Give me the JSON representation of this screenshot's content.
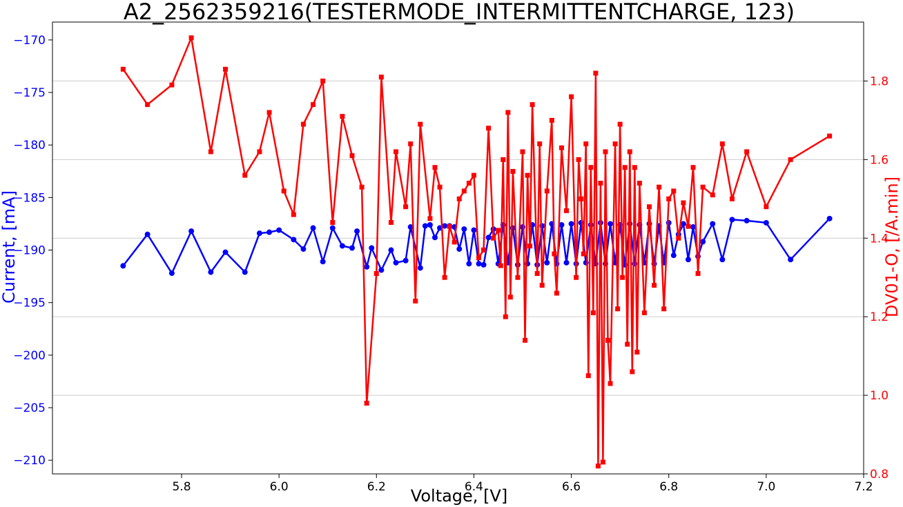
{
  "chart_data": {
    "type": "line",
    "title": "A2_2562359216(TESTERMODE_INTERMITTENTCHARGE, 123)",
    "xlabel": "Voltage, [V]",
    "ylabel_left": "Current, [mA]",
    "ylabel_right": "DV01-O, [/A.min]",
    "xlim": [
      5.535,
      7.2
    ],
    "ylim_left": [
      -211.3,
      -168.3
    ],
    "ylim_right": [
      0.8,
      1.95
    ],
    "xticks": [
      "5.8",
      "6.0",
      "6.2",
      "6.4",
      "6.6",
      "6.8",
      "7.0",
      "7.2"
    ],
    "yticks_left": [
      "−170",
      "−175",
      "−180",
      "−185",
      "−190",
      "−195",
      "−200",
      "−205",
      "−210"
    ],
    "yticks_right": [
      "1.8",
      "1.6",
      "1.4",
      "1.2",
      "1.0",
      "0.8"
    ],
    "grid": "horizontal, right axis",
    "colors": {
      "current": "#0000ff",
      "dv": "#ff0000",
      "grid": "#cccccc"
    },
    "series": [
      {
        "axis": "left",
        "marker": "circle",
        "x": [
          5.68,
          5.73,
          5.78,
          5.82,
          5.86,
          5.89,
          5.93,
          5.96,
          5.98,
          6.0,
          6.03,
          6.05,
          6.07,
          6.09,
          6.11,
          6.13,
          6.15,
          6.16,
          6.18,
          6.19,
          6.21,
          6.23,
          6.24,
          6.26,
          6.27,
          6.29,
          6.3,
          6.31,
          6.32,
          6.33,
          6.34,
          6.35,
          6.36,
          6.37,
          6.38,
          6.39,
          6.4,
          6.41,
          6.42,
          6.43,
          6.44,
          6.45,
          6.46,
          6.47,
          6.48,
          6.49,
          6.5,
          6.51,
          6.52,
          6.53,
          6.54,
          6.55,
          6.56,
          6.57,
          6.58,
          6.59,
          6.6,
          6.61,
          6.62,
          6.63,
          6.64,
          6.65,
          6.66,
          6.67,
          6.68,
          6.69,
          6.7,
          6.71,
          6.72,
          6.73,
          6.74,
          6.75,
          6.76,
          6.77,
          6.78,
          6.79,
          6.8,
          6.81,
          6.82,
          6.83,
          6.84,
          6.85,
          6.86,
          6.87,
          6.89,
          6.91,
          6.93,
          6.96,
          7.0,
          7.05,
          7.13
        ],
        "y": [
          -191.5,
          -188.5,
          -192.2,
          -188.2,
          -192.1,
          -190.2,
          -192.1,
          -188.4,
          -188.3,
          -188.1,
          -189.0,
          -189.9,
          -187.9,
          -191.1,
          -187.9,
          -189.6,
          -189.8,
          -188.2,
          -191.6,
          -189.8,
          -191.9,
          -190.0,
          -191.2,
          -191.0,
          -187.8,
          -191.7,
          -187.7,
          -187.6,
          -188.8,
          -187.9,
          -187.7,
          -187.7,
          -187.8,
          -189.9,
          -188.0,
          -191.3,
          -188.1,
          -191.3,
          -191.4,
          -188.8,
          -188.0,
          -191.3,
          -187.6,
          -191.2,
          -187.9,
          -191.4,
          -187.8,
          -191.3,
          -187.6,
          -191.4,
          -187.7,
          -191.2,
          -187.5,
          -191.3,
          -187.6,
          -191.2,
          -187.5,
          -191.3,
          -187.4,
          -191.2,
          -187.6,
          -191.3,
          -187.4,
          -191.3,
          -187.5,
          -191.2,
          -187.6,
          -191.4,
          -187.5,
          -191.3,
          -187.6,
          -191.2,
          -187.5,
          -191.3,
          -187.7,
          -191.2,
          -187.4,
          -190.5,
          -188.5,
          -187.5,
          -190.9,
          -187.8,
          -190.6,
          -189.2,
          -187.5,
          -190.9,
          -187.1,
          -187.2,
          -187.4,
          -190.9,
          -187.0
        ]
      },
      {
        "axis": "right",
        "marker": "square",
        "x": [
          5.68,
          5.73,
          5.78,
          5.82,
          5.86,
          5.89,
          5.93,
          5.96,
          5.98,
          6.01,
          6.03,
          6.05,
          6.07,
          6.09,
          6.11,
          6.13,
          6.15,
          6.17,
          6.18,
          6.2,
          6.21,
          6.23,
          6.24,
          6.26,
          6.27,
          6.28,
          6.29,
          6.31,
          6.32,
          6.33,
          6.34,
          6.35,
          6.36,
          6.37,
          6.38,
          6.39,
          6.4,
          6.41,
          6.42,
          6.43,
          6.44,
          6.45,
          6.455,
          6.46,
          6.465,
          6.47,
          6.475,
          6.48,
          6.49,
          6.5,
          6.505,
          6.51,
          6.515,
          6.52,
          6.53,
          6.535,
          6.54,
          6.55,
          6.56,
          6.565,
          6.57,
          6.58,
          6.59,
          6.6,
          6.61,
          6.615,
          6.62,
          6.625,
          6.63,
          6.635,
          6.64,
          6.645,
          6.65,
          6.655,
          6.66,
          6.665,
          6.67,
          6.675,
          6.68,
          6.69,
          6.695,
          6.7,
          6.705,
          6.71,
          6.715,
          6.72,
          6.725,
          6.73,
          6.735,
          6.74,
          6.75,
          6.76,
          6.77,
          6.78,
          6.79,
          6.8,
          6.81,
          6.82,
          6.83,
          6.84,
          6.85,
          6.86,
          6.87,
          6.89,
          6.91,
          6.93,
          6.96,
          7.0,
          7.05,
          7.13
        ],
        "y": [
          1.83,
          1.74,
          1.79,
          1.91,
          1.62,
          1.83,
          1.56,
          1.62,
          1.72,
          1.52,
          1.46,
          1.69,
          1.74,
          1.8,
          1.44,
          1.71,
          1.61,
          1.53,
          0.98,
          1.31,
          1.81,
          1.44,
          1.62,
          1.48,
          1.64,
          1.24,
          1.69,
          1.45,
          1.58,
          1.53,
          1.3,
          1.43,
          1.39,
          1.5,
          1.52,
          1.54,
          1.56,
          1.35,
          1.37,
          1.68,
          1.4,
          1.42,
          1.33,
          1.6,
          1.2,
          1.72,
          1.25,
          1.57,
          1.3,
          1.62,
          1.14,
          1.56,
          1.38,
          1.74,
          1.31,
          1.64,
          1.28,
          1.52,
          1.7,
          1.36,
          1.26,
          1.63,
          1.47,
          1.76,
          1.3,
          1.6,
          1.5,
          1.36,
          1.64,
          1.05,
          1.58,
          1.21,
          1.82,
          0.82,
          1.54,
          0.83,
          1.62,
          1.14,
          1.03,
          1.64,
          1.22,
          1.69,
          1.3,
          1.58,
          1.13,
          1.62,
          1.06,
          1.58,
          1.11,
          1.54,
          1.21,
          1.48,
          1.28,
          1.53,
          1.22,
          1.5,
          1.52,
          1.4,
          1.49,
          1.43,
          1.58,
          1.31,
          1.53,
          1.51,
          1.64,
          1.5,
          1.62,
          1.48,
          1.6,
          1.66
        ]
      }
    ]
  }
}
